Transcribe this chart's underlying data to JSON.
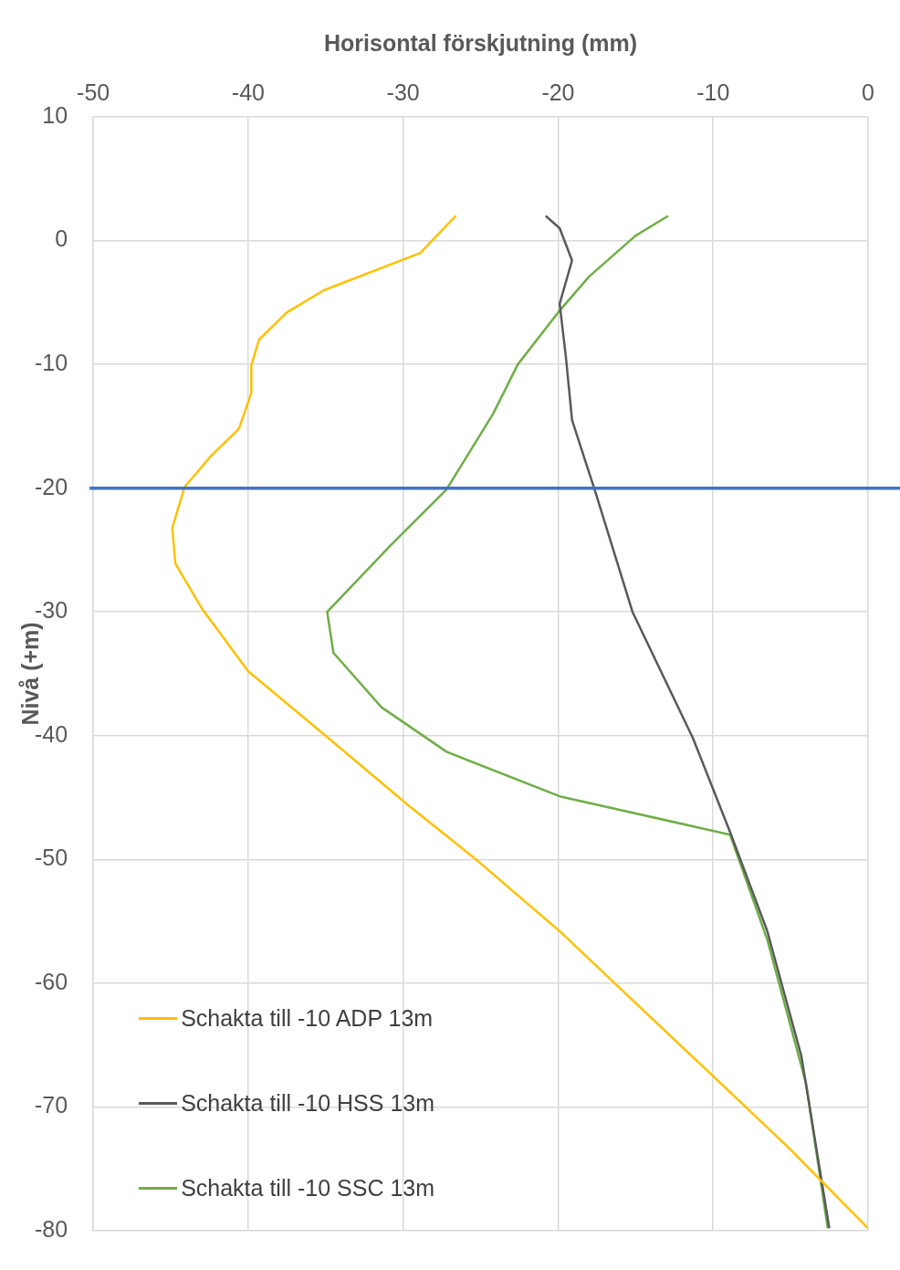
{
  "chart_data": {
    "type": "line",
    "xlabel": "Horisontal förskjutning (mm)",
    "ylabel": "Nivå (+m)",
    "xlim": [
      -50,
      0
    ],
    "xticks": [
      -50,
      -40,
      -30,
      -20,
      -10,
      0
    ],
    "ylim": [
      -80,
      10
    ],
    "yticks": [
      10,
      0,
      -10,
      -20,
      -30,
      -40,
      -50,
      -60,
      -70,
      -80
    ],
    "grid": true,
    "legend": "bottom left",
    "marker": "none",
    "line_style": "solid",
    "ref_lines": [
      {
        "axis": "y",
        "value": -20,
        "color": "#4472c4"
      }
    ],
    "series": [
      {
        "name": "Schakta till -10 ADP 13m",
        "color": "#ffc000",
        "x": [
          -26.6,
          -28.9,
          -35.1,
          -37.5,
          -39.3,
          -39.8,
          -39.8,
          -40.6,
          -42.4,
          -44.1,
          -44.9,
          -44.7,
          -43.0,
          -40.0,
          -35.1,
          -29.6,
          -25.3,
          -19.9,
          -15.0,
          -9.5,
          -5.2,
          0
        ],
        "values": [
          2,
          -1,
          -4,
          -5.8,
          -8,
          -10.1,
          -12.3,
          -15.2,
          -17.4,
          -19.9,
          -23.2,
          -26.1,
          -29.7,
          -34.8,
          -39.9,
          -45.7,
          -50,
          -55.8,
          -61.6,
          -68.1,
          -73.2,
          -79.8
        ]
      },
      {
        "name": "Schakta till -10 HSS 13m",
        "color": "#595959",
        "x": [
          -20.8,
          -19.9,
          -19.1,
          -19.9,
          -19.5,
          -19.1,
          -17.6,
          -15.2,
          -11.3,
          -8.9,
          -6.5,
          -4.3,
          -2.5
        ],
        "values": [
          2,
          1,
          -1.6,
          -5.1,
          -9.4,
          -14.5,
          -20.3,
          -30,
          -40.2,
          -47.8,
          -55.8,
          -65.9,
          -79.8
        ]
      },
      {
        "name": "Schakta till -10 SSC 13m",
        "color": "#70ad47",
        "x": [
          -12.9,
          -15,
          -18,
          -20,
          -22.6,
          -24.2,
          -27.2,
          -30.8,
          -34.9,
          -34.5,
          -31.4,
          -27.2,
          -19.9,
          -8.9,
          -6.5,
          -4.0,
          -2.6
        ],
        "values": [
          2,
          0.4,
          -2.9,
          -5.8,
          -10,
          -14,
          -20.1,
          -24.6,
          -30,
          -33.3,
          -37.7,
          -41.3,
          -44.9,
          -48,
          -56.5,
          -68.1,
          -79.8
        ]
      }
    ]
  }
}
